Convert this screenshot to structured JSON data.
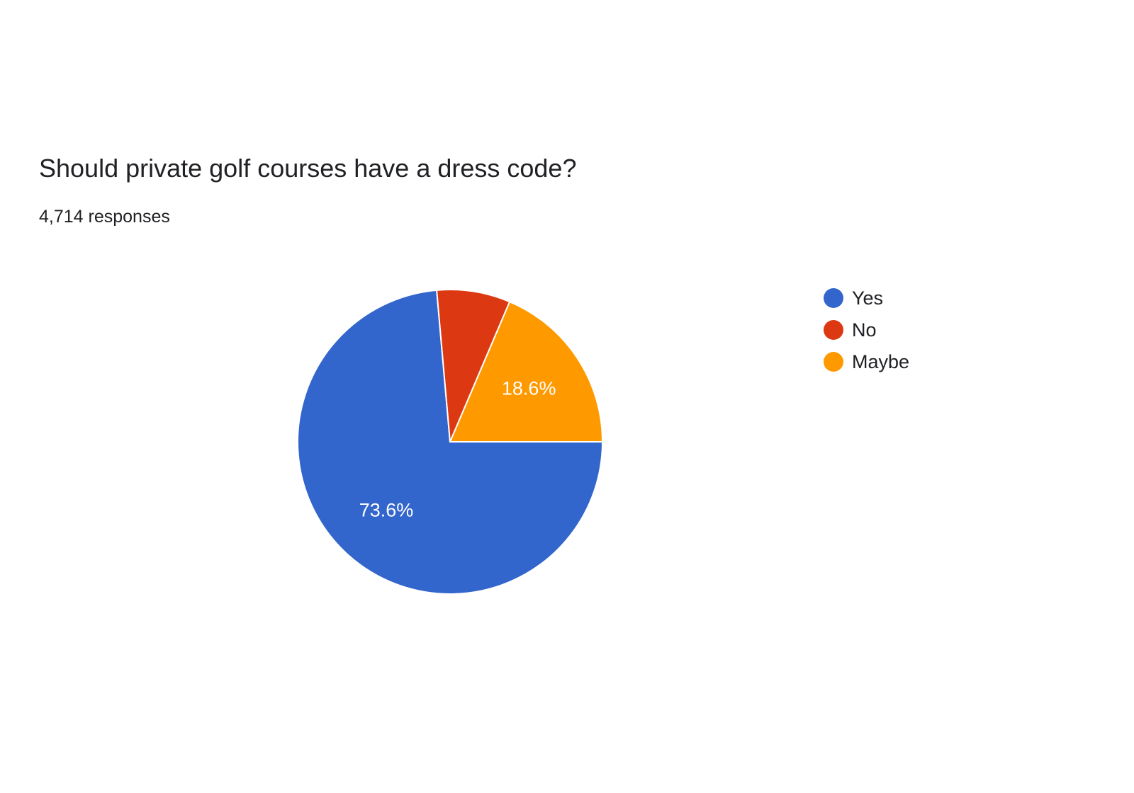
{
  "question": {
    "title": "Should private golf courses have a dress code?",
    "responses_label": "4,714 responses"
  },
  "chart_data": {
    "type": "pie",
    "title": "Should private golf courses have a dress code?",
    "subtitle": "4,714 responses",
    "total_responses": 4714,
    "legend_position": "right",
    "slices": [
      {
        "name": "Yes",
        "percent": 73.6,
        "label": "73.6%",
        "color": "#3366cc"
      },
      {
        "name": "No",
        "percent": 7.8,
        "label": "",
        "color": "#dc3912"
      },
      {
        "name": "Maybe",
        "percent": 18.6,
        "label": "18.6%",
        "color": "#ff9900"
      }
    ]
  }
}
